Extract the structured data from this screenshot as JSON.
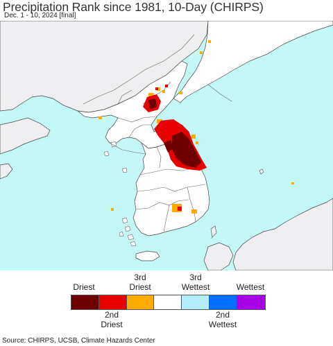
{
  "title": "Precipitation Rank since 1981, 10-Day (CHIRPS)",
  "subtitle": "Dec. 1 - 10, 2024 [final]",
  "legend": {
    "top_labels": [
      "Driest",
      "3rd\nDriest",
      "3rd\nWettest",
      "Wettest"
    ],
    "bottom_labels": [
      "2nd\nDriest",
      "2nd\nWettest"
    ],
    "colors": [
      "#6e0000",
      "#e60000",
      "#ffaa00",
      "#ffffff",
      "#b4eefa",
      "#0070ff",
      "#a800e6"
    ],
    "color_names": [
      "Driest",
      "2nd Driest",
      "3rd Driest",
      "Normal",
      "3rd Wettest",
      "2nd Wettest",
      "Wettest"
    ]
  },
  "source": "Source: CHIRPS, UCSB, Climate Hazards Center",
  "colors": {
    "water": "#c3f8f7",
    "outside_land": "#efeef0",
    "analysis_land": "#ffffff",
    "borders": "#555555"
  }
}
